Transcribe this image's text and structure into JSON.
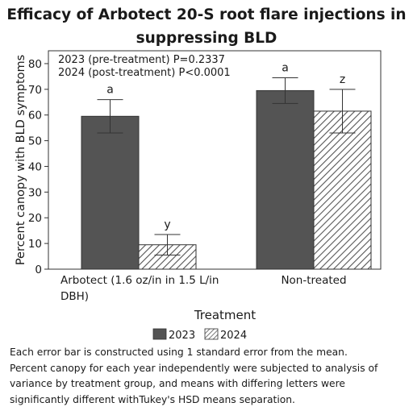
{
  "chart_data": {
    "type": "bar",
    "title": [
      "Efficacy of Arbotect 20-S root flare injections in",
      "suppressing BLD"
    ],
    "xlabel": "Treatment",
    "ylabel": "Percent canopy with BLD symptoms",
    "categories": [
      [
        "Arbotect (1.6 oz/in in 1.5 L/in",
        "DBH)"
      ],
      [
        "Non-treated"
      ]
    ],
    "ylim": [
      0,
      85
    ],
    "yticks": [
      0,
      10,
      20,
      30,
      40,
      50,
      60,
      70,
      80
    ],
    "series": [
      {
        "name": "2023",
        "fill": "solid",
        "color": "#545454",
        "values": [
          59.5,
          69.5
        ],
        "error": [
          6.5,
          5
        ],
        "letters": [
          "a",
          "a"
        ]
      },
      {
        "name": "2024",
        "fill": "hatched",
        "color": "#555555",
        "values": [
          9.5,
          61.5
        ],
        "error": [
          4,
          8.5
        ],
        "letters": [
          "y",
          "z"
        ]
      }
    ],
    "annotations": [
      "2023 (pre-treatment) P=0.2337",
      "2024 (post-treatment) P<0.0001"
    ],
    "legend_position": "bottom",
    "grid": false
  },
  "caption": [
    "Each error bar is constructed using 1 standard error from the mean.",
    "Percent canopy for each year independently were subjected to analysis of",
    "variance  by treatment group, and means with differing letters were",
    "significantly different withTukey's HSD means separation."
  ]
}
